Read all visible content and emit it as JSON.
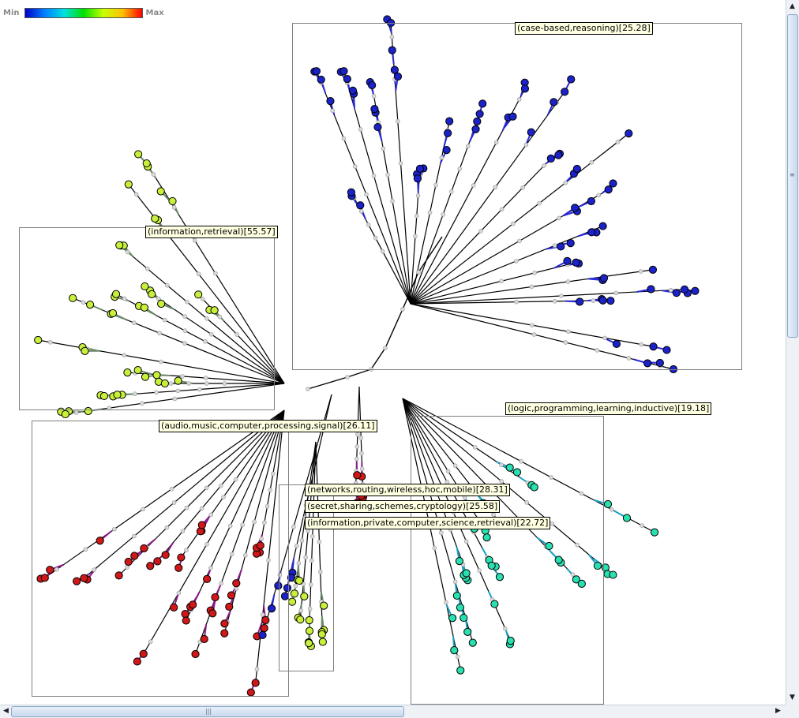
{
  "legend": {
    "min_label": "Min",
    "max_label": "Max"
  },
  "clusters": [
    {
      "id": "case-based",
      "label": "(case-based,reasoning)[25.28]",
      "color": "#1a22c8"
    },
    {
      "id": "information-retrieval",
      "label": "(information,retrieval)[55.57]",
      "color": "#c8f03a"
    },
    {
      "id": "audio",
      "label": "(audio,music,computer,processing,signal)[26.11]",
      "color": "#d01818"
    },
    {
      "id": "logic",
      "label": "(logic,programming,learning,inductive)[19.18]",
      "color": "#28e0b0"
    },
    {
      "id": "networks",
      "label": "(networks,routing,wireless,hoc,mobile)[28.31]",
      "color": "#1a22c8"
    },
    {
      "id": "secret",
      "label": "(secret,sharing,schemes,cryptology)[25.58]",
      "color": "#c8f03a"
    },
    {
      "id": "information-private",
      "label": "(information,private,computer,science,retrieval)[22.72]",
      "color": "#c8f03a"
    }
  ],
  "scrollbars": {
    "up": "▲",
    "down": "▼",
    "left": "◀",
    "right": "▶"
  }
}
